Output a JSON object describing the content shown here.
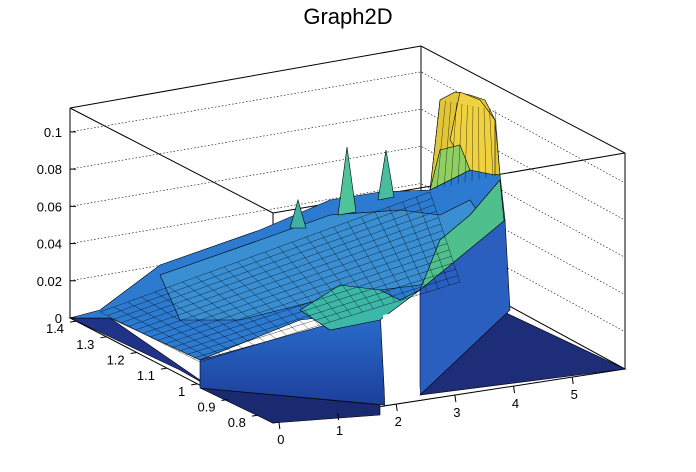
{
  "chart_data": {
    "type": "surface",
    "title": "Graph2D",
    "x_ticks": [
      "0",
      "1",
      "2",
      "3",
      "4",
      "5"
    ],
    "y_ticks": [
      "0.8",
      "0.9",
      "1",
      "1.1",
      "1.2",
      "1.3",
      "1.4"
    ],
    "z_ticks": [
      "0",
      "0.02",
      "0.04",
      "0.06",
      "0.08",
      "0.1"
    ],
    "xlim": [
      -0.1,
      5.9
    ],
    "ylim": [
      0.75,
      1.42
    ],
    "zlim": [
      0,
      0.115
    ],
    "colormap": "kBird (blue to yellow)",
    "grid": "dotted back-plane gridlines",
    "surface_points": [
      {
        "x": 0.0,
        "y": 1.4,
        "z": 0.0
      },
      {
        "x": 0.5,
        "y": 1.4,
        "z": 0.015
      },
      {
        "x": 1.0,
        "y": 1.4,
        "z": 0.02
      },
      {
        "x": 2.0,
        "y": 1.4,
        "z": 0.03
      },
      {
        "x": 3.0,
        "y": 1.4,
        "z": 0.035
      },
      {
        "x": 3.5,
        "y": 1.4,
        "z": 0.04
      },
      {
        "x": 0.5,
        "y": 1.1,
        "z": 0.02
      },
      {
        "x": 1.0,
        "y": 1.1,
        "z": 0.025
      },
      {
        "x": 2.0,
        "y": 1.0,
        "z": 0.02
      },
      {
        "x": 2.5,
        "y": 1.0,
        "z": 0.04
      },
      {
        "x": 3.0,
        "y": 1.0,
        "z": 0.035
      },
      {
        "x": 3.5,
        "y": 1.1,
        "z": 0.06
      },
      {
        "x": 4.0,
        "y": 1.2,
        "z": 0.05
      },
      {
        "x": 3.5,
        "y": 1.3,
        "z": 0.075
      },
      {
        "x": 3.5,
        "y": 1.4,
        "z": 0.11
      },
      {
        "x": 3.8,
        "y": 1.4,
        "z": 0.095
      },
      {
        "x": 2.0,
        "y": 1.4,
        "z": 0.085
      },
      {
        "x": 2.5,
        "y": 1.4,
        "z": 0.085
      },
      {
        "x": 1.5,
        "y": 1.4,
        "z": 0.06
      },
      {
        "x": 0.0,
        "y": 0.8,
        "z": 0.0
      },
      {
        "x": 5.5,
        "y": 0.8,
        "z": 0.0
      }
    ]
  }
}
